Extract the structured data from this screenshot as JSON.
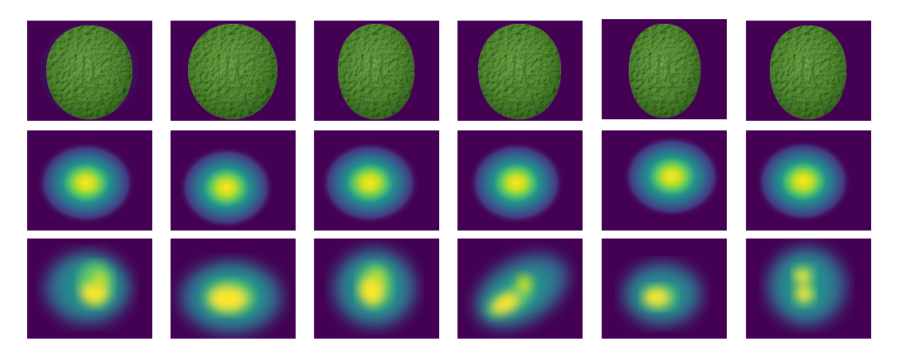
{
  "colors": {
    "background_purple": "#440154",
    "viridis_mid_blue": "#31688e",
    "viridis_teal": "#21918c",
    "viridis_green": "#5ec962",
    "viridis_yellow": "#fde725",
    "face_green": "#7fae62",
    "face_shadow": "#3f6a2e"
  },
  "grid": {
    "rows": [
      {
        "name": "face-render-row",
        "kind": "face-mesh-render"
      },
      {
        "name": "gaussian-heatmap-row",
        "kind": "smooth-heatmap"
      },
      {
        "name": "irregular-heatmap-row",
        "kind": "irregular-heatmap"
      }
    ],
    "columns": 6
  }
}
